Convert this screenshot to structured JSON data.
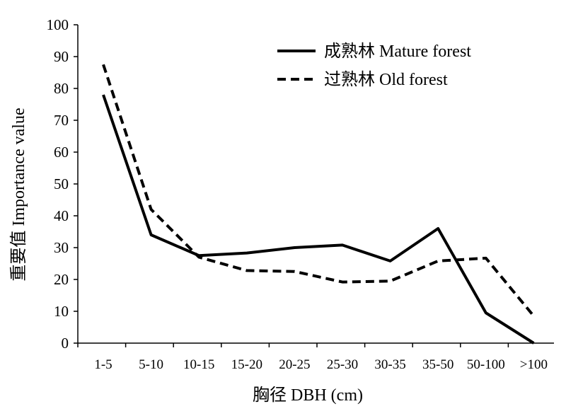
{
  "chart_data": {
    "type": "line",
    "categories": [
      "1-5",
      "5-10",
      "10-15",
      "15-20",
      "20-25",
      "25-30",
      "30-35",
      "35-50",
      "50-100",
      ">100"
    ],
    "series": [
      {
        "name": "成熟林 Mature forest",
        "style": "solid",
        "color": "#000000",
        "values": [
          78,
          34,
          27.5,
          28.3,
          30,
          30.8,
          25.8,
          36,
          9.5,
          0
        ]
      },
      {
        "name": "过熟林 Old forest",
        "style": "dashed",
        "color": "#000000",
        "values": [
          87.5,
          42,
          27,
          22.8,
          22.5,
          19.2,
          19.5,
          25.8,
          26.7,
          8.5
        ]
      }
    ],
    "y_ticks": [
      "0",
      "10",
      "20",
      "30",
      "40",
      "50",
      "60",
      "70",
      "80",
      "90",
      "100"
    ],
    "xlabel": "胸径 DBH (cm)",
    "ylabel": "重要值 Importance value",
    "ylim": [
      0,
      100
    ],
    "grid": false,
    "legend_position": "top-right"
  }
}
